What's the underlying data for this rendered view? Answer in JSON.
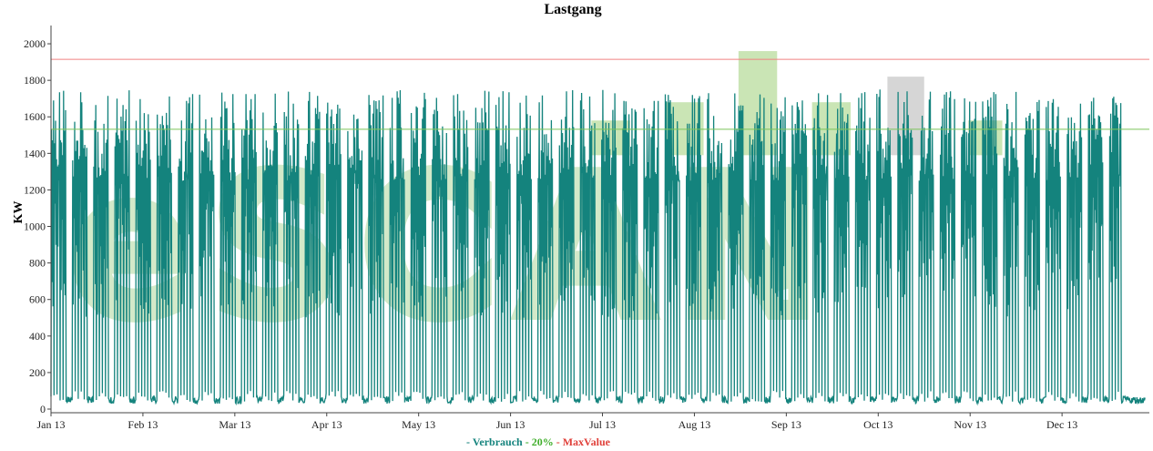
{
  "chart_data": {
    "type": "line",
    "title": "Lastgang",
    "ylabel": "KW",
    "xlabel": "",
    "ylim": [
      0,
      2100
    ],
    "y_ticks": [
      0,
      200,
      400,
      600,
      800,
      1000,
      1200,
      1400,
      1600,
      1800,
      2000
    ],
    "x_ticks": [
      "Jan 13",
      "Feb 13",
      "Mar 13",
      "Apr 13",
      "May 13",
      "Jun 13",
      "Jul 13",
      "Aug 13",
      "Sep 13",
      "Oct 13",
      "Nov 13",
      "Dec 13"
    ],
    "x_range_months": [
      0,
      11.95
    ],
    "grid": false,
    "series": [
      {
        "name": "Verbrauch",
        "color": "#14837d",
        "style": "weekly-load-profile"
      }
    ],
    "reference_lines": [
      {
        "name": "MaxValue",
        "value": 1915,
        "color": "#f08080"
      },
      {
        "name": "20%",
        "value": 1532,
        "color": "#7cc45a"
      }
    ],
    "highlight_boxes": [
      {
        "x0": 5.88,
        "x1": 6.3,
        "y0": 1390,
        "y1": 1580,
        "color": "#b8dc9c"
      },
      {
        "x0": 6.68,
        "x1": 7.1,
        "y0": 1390,
        "y1": 1680,
        "color": "#b8dc9c"
      },
      {
        "x0": 7.48,
        "x1": 7.9,
        "y0": 1390,
        "y1": 1960,
        "color": "#b8dc9c"
      },
      {
        "x0": 8.28,
        "x1": 8.7,
        "y0": 1390,
        "y1": 1680,
        "color": "#b8dc9c"
      },
      {
        "x0": 9.1,
        "x1": 9.5,
        "y0": 1390,
        "y1": 1820,
        "color": "#c8c8c8"
      },
      {
        "x0": 9.98,
        "x1": 10.35,
        "y0": 1390,
        "y1": 1580,
        "color": "#b8dc9c"
      }
    ],
    "legend": {
      "placement": "bottom-center",
      "items": [
        {
          "label": "- Verbrauch",
          "color": "#14837d"
        },
        {
          "label": "- 20%",
          "color": "#3fae2a"
        },
        {
          "label": "- MaxValue",
          "color": "#e0403a"
        }
      ]
    }
  }
}
